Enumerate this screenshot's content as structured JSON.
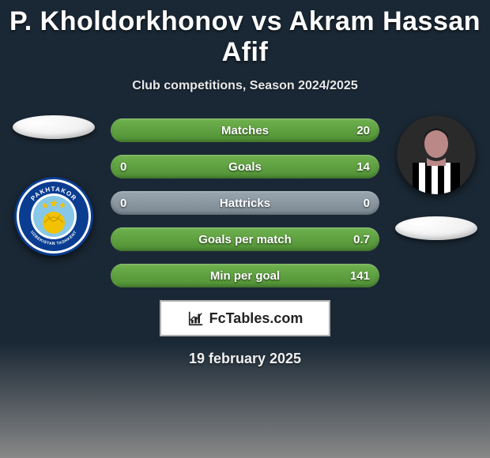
{
  "title": "P. Kholdorkhonov vs Akram Hassan Afif",
  "subtitle": "Club competitions, Season 2024/2025",
  "date": "19 february 2025",
  "logo_text": "FcTables.com",
  "colors": {
    "title": "#ffffff",
    "subtitle": "#e8e8e8",
    "bar_gradient_top": "#9aa6af",
    "bar_gradient_bot": "#7a8892",
    "fill_gradient_top": "#6fb24e",
    "fill_gradient_bot": "#4f8f34",
    "bar_text": "#ffffff",
    "label_fontsize": 15
  },
  "left": {
    "ellipse_color": "#f2f2f2",
    "club_badge": {
      "bg": "#0a3d91",
      "ring": "#ffffff",
      "ring2": "#0a3d91",
      "stars": "#f2c200",
      "ball": "#f2c200",
      "text_top": "PAKHTAKOR",
      "text_bot": "UZBEKISTAN TASHKENT"
    }
  },
  "right": {
    "ellipse_color": "#f2f2f2",
    "player_bg": "#1a1a1a",
    "jersey_stripes": [
      "#000000",
      "#ffffff"
    ]
  },
  "bars": [
    {
      "label": "Matches",
      "left": "",
      "right": "20",
      "left_frac": 0.0,
      "right_frac": 1.0
    },
    {
      "label": "Goals",
      "left": "0",
      "right": "14",
      "left_frac": 0.0,
      "right_frac": 1.0
    },
    {
      "label": "Hattricks",
      "left": "0",
      "right": "0",
      "left_frac": 0.0,
      "right_frac": 0.0
    },
    {
      "label": "Goals per match",
      "left": "",
      "right": "0.7",
      "left_frac": 0.0,
      "right_frac": 1.0
    },
    {
      "label": "Min per goal",
      "left": "",
      "right": "141",
      "left_frac": 0.0,
      "right_frac": 1.0
    }
  ]
}
